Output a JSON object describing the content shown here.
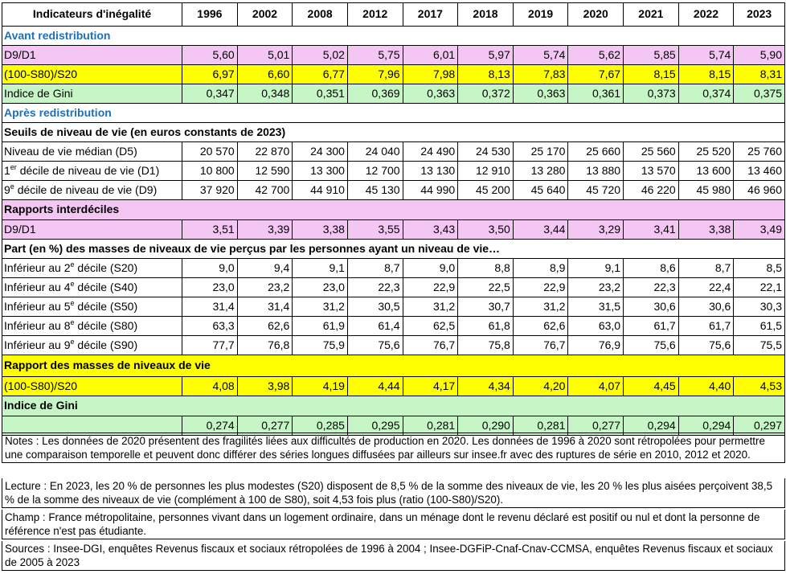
{
  "header": {
    "title": "Indicateurs d'inégalité",
    "years": [
      "1996",
      "2002",
      "2008",
      "2012",
      "2017",
      "2018",
      "2019",
      "2020",
      "2021",
      "2022",
      "2023"
    ]
  },
  "avant": {
    "title": "Avant redistribution",
    "rows": [
      {
        "label": "D9/D1",
        "values": [
          "5,60",
          "5,01",
          "5,02",
          "5,75",
          "6,01",
          "5,97",
          "5,74",
          "5,62",
          "5,85",
          "5,74",
          "5,90"
        ],
        "color": "#f4c6f4"
      },
      {
        "label": "(100-S80)/S20",
        "values": [
          "6,97",
          "6,60",
          "6,77",
          "7,96",
          "7,98",
          "8,13",
          "7,83",
          "7,67",
          "8,15",
          "8,15",
          "8,31"
        ],
        "color": "#ffff00"
      },
      {
        "label": "Indice de Gini",
        "values": [
          "0,347",
          "0,348",
          "0,351",
          "0,369",
          "0,363",
          "0,372",
          "0,363",
          "0,361",
          "0,373",
          "0,374",
          "0,375"
        ],
        "color": "#c6f6c6"
      }
    ]
  },
  "apres": {
    "title": "Après redistribution",
    "seuils_title": "Seuils de niveau de vie (en euros constants de 2023)",
    "seuils": [
      {
        "label": "Niveau de vie médian (D5)",
        "values": [
          "20 570",
          "22 870",
          "24 300",
          "24 040",
          "24 490",
          "24 530",
          "25 170",
          "25 660",
          "25 560",
          "25 520",
          "25 760"
        ]
      },
      {
        "label_pre": "1",
        "label_sup": "er",
        "label_post": " décile de niveau de vie (D1)",
        "values": [
          "10 800",
          "12 590",
          "13 300",
          "12 700",
          "13 130",
          "12 910",
          "13 280",
          "13 880",
          "13 570",
          "13 600",
          "13 460"
        ]
      },
      {
        "label_pre": "9",
        "label_sup": "e",
        "label_post": " décile de niveau de vie (D9)",
        "values": [
          "37 920",
          "42 700",
          "44 910",
          "45 130",
          "44 990",
          "45 200",
          "45 640",
          "45 720",
          "46 220",
          "45 980",
          "46 960"
        ]
      }
    ],
    "interdeciles_title": "Rapports interdéciles",
    "interdeciles": {
      "label": "D9/D1",
      "values": [
        "3,51",
        "3,39",
        "3,38",
        "3,55",
        "3,43",
        "3,50",
        "3,44",
        "3,29",
        "3,41",
        "3,38",
        "3,49"
      ]
    },
    "part_title": "Part (en %) des masses de niveaux de vie perçus par les personnes ayant un niveau de vie…",
    "part": [
      {
        "label_pre": "Inférieur au 2",
        "label_sup": "e",
        "label_post": " décile (S20)",
        "values": [
          "9,0",
          "9,4",
          "9,1",
          "8,7",
          "9,0",
          "8,8",
          "8,9",
          "9,1",
          "8,6",
          "8,7",
          "8,5"
        ]
      },
      {
        "label_pre": "Inférieur au 4",
        "label_sup": "e",
        "label_post": " décile (S40)",
        "values": [
          "23,0",
          "23,2",
          "23,0",
          "22,3",
          "22,9",
          "22,5",
          "22,9",
          "23,2",
          "22,3",
          "22,4",
          "22,1"
        ]
      },
      {
        "label_pre": "Inférieur au 5",
        "label_sup": "e",
        "label_post": " décile (S50)",
        "values": [
          "31,4",
          "31,4",
          "31,2",
          "30,5",
          "31,2",
          "30,7",
          "31,2",
          "31,5",
          "30,6",
          "30,6",
          "30,3"
        ]
      },
      {
        "label_pre": "Inférieur au 8",
        "label_sup": "e",
        "label_post": " décile (S80)",
        "values": [
          "63,3",
          "62,6",
          "61,9",
          "61,4",
          "62,5",
          "61,8",
          "62,6",
          "63,0",
          "61,7",
          "61,7",
          "61,5"
        ]
      },
      {
        "label_pre": "Inférieur au 9",
        "label_sup": "e",
        "label_post": " décile (S90)",
        "values": [
          "77,7",
          "76,8",
          "75,9",
          "75,6",
          "76,7",
          "75,8",
          "76,7",
          "76,9",
          "75,6",
          "75,6",
          "75,5"
        ]
      }
    ],
    "masses_title": "Rapport des masses de niveaux de vie",
    "masses": {
      "label": "(100-S80)/S20",
      "values": [
        "4,08",
        "3,98",
        "4,19",
        "4,44",
        "4,17",
        "4,34",
        "4,20",
        "4,07",
        "4,45",
        "4,40",
        "4,53"
      ]
    },
    "gini_title": "Indice de Gini",
    "gini": {
      "values": [
        "0,274",
        "0,277",
        "0,285",
        "0,295",
        "0,281",
        "0,290",
        "0,281",
        "0,277",
        "0,294",
        "0,294",
        "0,297"
      ]
    }
  },
  "notes": {
    "notes": "Notes : Les données de 2020 présentent des fragilités liées aux difficultés de production en 2020. Les données de 1996 à 2020 sont rétropolées pour permettre une comparaison temporelle et peuvent donc différer des séries longues diffusées par ailleurs sur insee.fr avec des ruptures de série en 2010, 2012 et 2020.",
    "lecture": "Lecture : En 2023, les 20 % de personnes les plus modestes (S20) disposent de 8,5 % de la somme des niveaux de vie, les 20 % les plus aisées perçoivent 38,5 % de la somme des niveaux de vie (complément à 100 de S80), soit 4,53 fois plus (ratio (100-S80)/S20).",
    "champ": "Champ : France métropolitaine, personnes vivant dans un logement ordinaire, dans un ménage dont le revenu déclaré est positif ou nul et dont la personne de référence n'est pas étudiante.",
    "sources": "Sources : Insee-DGI, enquêtes Revenus fiscaux et sociaux rétropolées de 1996 à 2004 ; Insee-DGFiP-Cnaf-Cnav-CCMSA, enquêtes Revenus fiscaux et sociaux de 2005 à 2023"
  }
}
